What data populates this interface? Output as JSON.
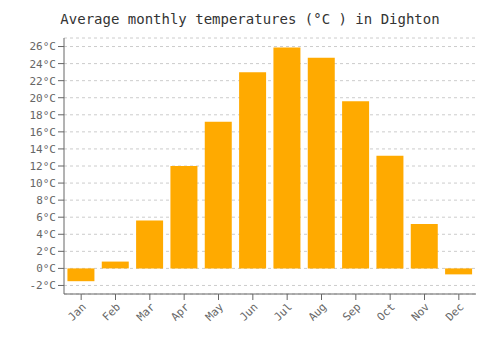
{
  "chart_data": {
    "type": "bar",
    "title": "Average monthly temperatures (°C ) in Dighton",
    "categories": [
      "Jan",
      "Feb",
      "Mar",
      "Apr",
      "May",
      "Jun",
      "Jul",
      "Aug",
      "Sep",
      "Oct",
      "Nov",
      "Dec"
    ],
    "values": [
      -1.5,
      0.8,
      5.6,
      12.0,
      17.2,
      23.0,
      25.9,
      24.7,
      19.6,
      13.2,
      5.2,
      -0.7
    ],
    "color": "#FFAA00",
    "ylim": [
      -3,
      27
    ],
    "yticks": [
      {
        "value": -2,
        "label": "-2°C"
      },
      {
        "value": 0,
        "label": "0°C"
      },
      {
        "value": 2,
        "label": "2°C"
      },
      {
        "value": 4,
        "label": "4°C"
      },
      {
        "value": 6,
        "label": "6°C"
      },
      {
        "value": 8,
        "label": "8°C"
      },
      {
        "value": 10,
        "label": "10°C"
      },
      {
        "value": 12,
        "label": "12°C"
      },
      {
        "value": 14,
        "label": "14°C"
      },
      {
        "value": 16,
        "label": "16°C"
      },
      {
        "value": 18,
        "label": "18°C"
      },
      {
        "value": 20,
        "label": "20°C"
      },
      {
        "value": 22,
        "label": "22°C"
      },
      {
        "value": 24,
        "label": "24°C"
      },
      {
        "value": 26,
        "label": "26°C"
      }
    ],
    "grid": true
  }
}
